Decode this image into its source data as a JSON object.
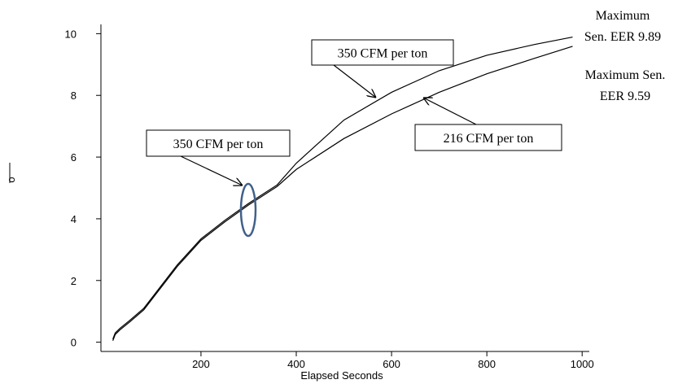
{
  "chart_data": {
    "type": "line",
    "x_label": "Elapsed Seconds",
    "y_label": "o",
    "x": [
      15,
      20,
      30,
      50,
      80,
      100,
      150,
      200,
      250,
      300,
      360,
      400,
      500,
      600,
      700,
      800,
      900,
      980
    ],
    "series": [
      {
        "name": "350 CFM per ton",
        "color": "#000000",
        "values": [
          0.1,
          0.3,
          0.45,
          0.7,
          1.1,
          1.5,
          2.5,
          3.35,
          3.95,
          4.5,
          5.1,
          5.8,
          7.2,
          8.1,
          8.8,
          9.3,
          9.65,
          9.89
        ]
      },
      {
        "name": "216 CFM per ton",
        "color": "#000000",
        "values": [
          0.05,
          0.25,
          0.4,
          0.65,
          1.05,
          1.45,
          2.45,
          3.3,
          3.9,
          4.45,
          5.05,
          5.6,
          6.6,
          7.4,
          8.1,
          8.7,
          9.2,
          9.59
        ]
      }
    ],
    "xlim": [
      -10,
      1015
    ],
    "xticks": [
      200,
      400,
      600,
      800,
      1000
    ],
    "ylim": [
      -0.3,
      10.3
    ],
    "yticks": [
      0,
      2,
      4,
      6,
      8,
      10
    ],
    "annotations": [
      {
        "lines": [
          "350 CFM per ton"
        ]
      },
      {
        "lines": [
          "350 CFM per ton"
        ]
      },
      {
        "lines": [
          "216 CFM per ton"
        ]
      },
      {
        "lines": [
          "Maximum",
          "Sen. EER 9.89"
        ]
      },
      {
        "lines": [
          "Maximum Sen.",
          "EER 9.59"
        ]
      }
    ]
  }
}
